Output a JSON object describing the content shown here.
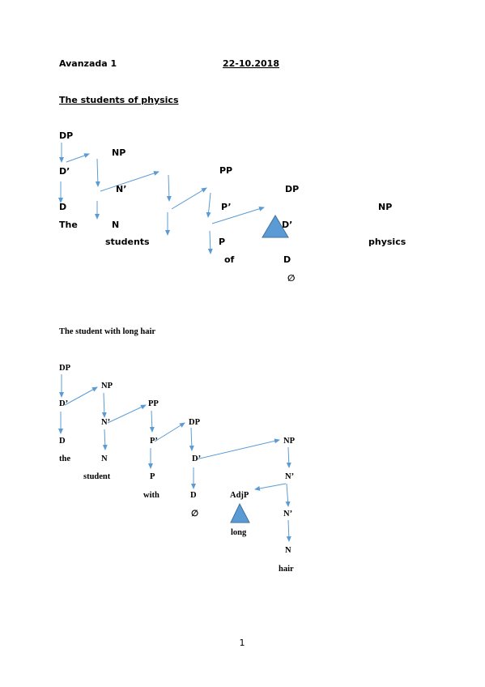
{
  "header": {
    "course": "Avanzada 1",
    "date": "22-10.2018"
  },
  "trees": [
    {
      "title": "The students of physics",
      "labels": [
        "DP",
        "NP",
        "D’",
        "N’",
        "PP",
        "DP",
        "D",
        "P’",
        "NP",
        "The",
        "N",
        "D’",
        "students",
        "P",
        "physics",
        "of",
        "D",
        "∅"
      ]
    },
    {
      "title": "The student with long hair",
      "labels": [
        "DP",
        "NP",
        "D’",
        "PP",
        "N’",
        "DP",
        "D",
        "P’",
        "NP",
        "the",
        "N",
        "D’",
        "student",
        "P",
        "N’",
        "with",
        "D",
        "AdjP",
        "∅",
        "N’",
        "long",
        "N",
        "hair"
      ]
    }
  ],
  "footer": {
    "page_number": 1
  }
}
